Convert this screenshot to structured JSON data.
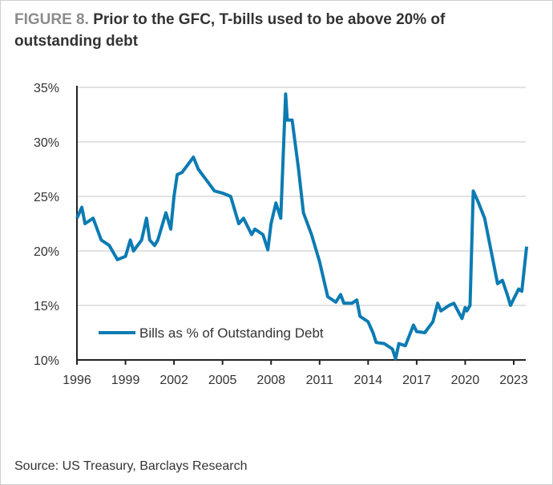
{
  "header": {
    "figure_label": "FIGURE 8.",
    "title": "Prior to the GFC, T-bills used to be above 20% of outstanding debt"
  },
  "source": "Source: US Treasury, Barclays Research",
  "colors": {
    "line": "#0c7bb3",
    "grid": "#d9d9d9",
    "axis": "#222222"
  },
  "chart_data": {
    "type": "line",
    "title": "Prior to the GFC, T-bills used to be above 20% of outstanding debt",
    "xlabel": "",
    "ylabel": "",
    "xlim": [
      1996,
      2023.9
    ],
    "ylim": [
      10,
      35
    ],
    "x_ticks": [
      1996,
      1999,
      2002,
      2005,
      2008,
      2011,
      2014,
      2017,
      2020,
      2023
    ],
    "x_tick_labels": [
      "1996",
      "1999",
      "2002",
      "2005",
      "2008",
      "2011",
      "2014",
      "2017",
      "2020",
      "2023"
    ],
    "y_ticks": [
      10,
      15,
      20,
      25,
      30,
      35
    ],
    "y_tick_labels": [
      "10%",
      "15%",
      "20%",
      "25%",
      "30%",
      "35%"
    ],
    "grid": "horizontal",
    "legend_position": "bottom-left",
    "series": [
      {
        "name": "Bills as % of Outstanding Debt",
        "x": [
          1996,
          1996.3,
          1996.5,
          1997,
          1997.5,
          1998,
          1998.5,
          1999,
          1999.3,
          1999.5,
          2000,
          2000.3,
          2000.5,
          2000.8,
          2001,
          2001.5,
          2001.8,
          2002,
          2002.2,
          2002.5,
          2003,
          2003.2,
          2003.5,
          2004,
          2004.5,
          2005,
          2005.5,
          2006,
          2006.3,
          2006.8,
          2007,
          2007.5,
          2007.8,
          2008,
          2008.3,
          2008.6,
          2008.9,
          2009,
          2009.3,
          2009.7,
          2010,
          2010.5,
          2011,
          2011.5,
          2012,
          2012.3,
          2012.5,
          2013,
          2013.3,
          2013.5,
          2014,
          2014.3,
          2014.5,
          2015,
          2015.5,
          2015.7,
          2015.9,
          2016.3,
          2016.8,
          2017,
          2017.5,
          2018,
          2018.3,
          2018.5,
          2019,
          2019.3,
          2019.8,
          2020,
          2020.1,
          2020.3,
          2020.5,
          2020.8,
          2021.2,
          2021.8,
          2022,
          2022.3,
          2022.6,
          2022.8,
          2023,
          2023.3,
          2023.5,
          2023.8
        ],
        "values": [
          23,
          24,
          22.5,
          23,
          21,
          20.5,
          19.2,
          19.5,
          21,
          20,
          21,
          23,
          21,
          20.5,
          21,
          23.5,
          22,
          25,
          27,
          27.2,
          28.2,
          28.6,
          27.5,
          26.5,
          25.5,
          25.3,
          25,
          22.5,
          23,
          21.5,
          22,
          21.5,
          20.1,
          22.5,
          24.4,
          23,
          34.4,
          32,
          32,
          27.5,
          23.5,
          21.5,
          19,
          15.8,
          15.3,
          16,
          15.2,
          15.2,
          15.5,
          14,
          13.5,
          12.5,
          11.6,
          11.5,
          11,
          10.1,
          11.5,
          11.3,
          13.2,
          12.6,
          12.5,
          13.5,
          15.2,
          14.5,
          15,
          15.2,
          13.8,
          14.8,
          14.5,
          15,
          25.5,
          24.5,
          23,
          18.5,
          17,
          17.3,
          16,
          15,
          15.6,
          16.5,
          16.3,
          20.4
        ]
      }
    ]
  }
}
